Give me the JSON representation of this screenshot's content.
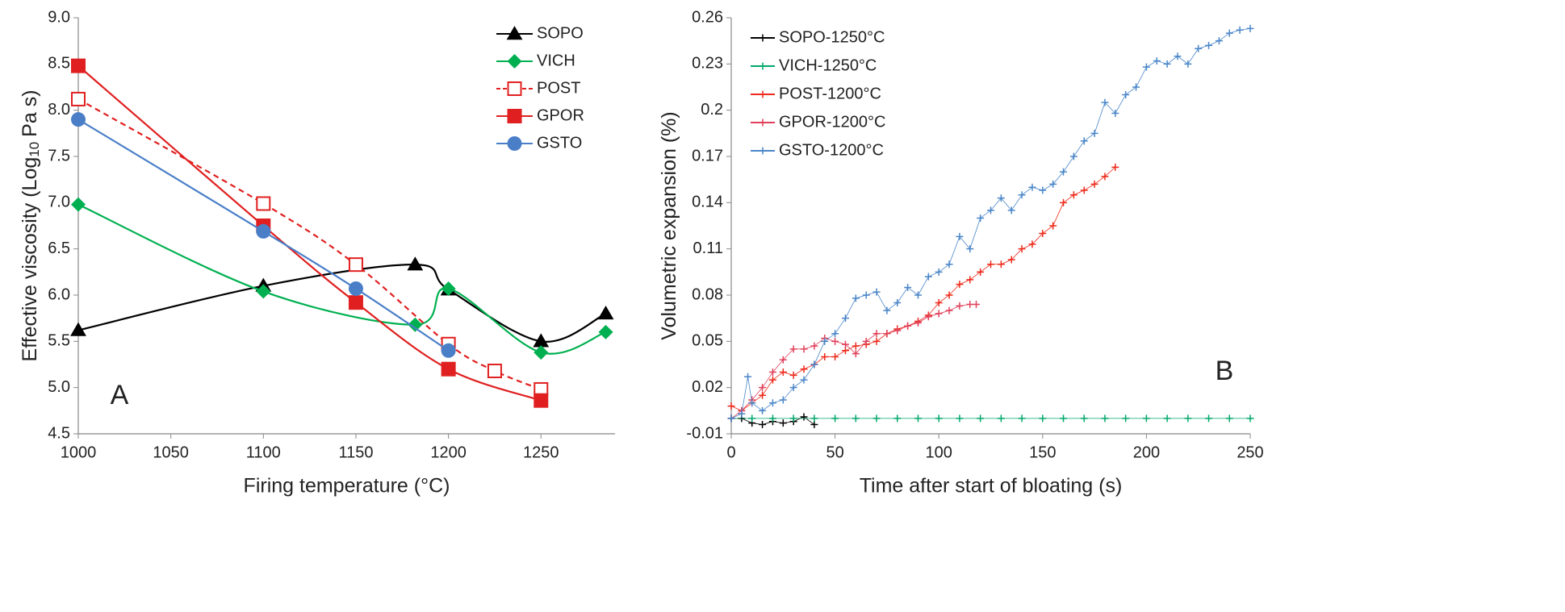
{
  "chart_data": [
    {
      "type": "line",
      "annotation": "A",
      "xlabel": "Firing temperature (°C)",
      "ylabel": "Effective viscosity (Log",
      "ylabel_sub": "10",
      "ylabel_end": "Pa s)",
      "xlim": [
        1000,
        1290
      ],
      "xticks": [
        1000,
        1050,
        1100,
        1150,
        1200,
        1250
      ],
      "ylim": [
        4.5,
        9.0
      ],
      "yticks": [
        {
          "value": 4.5,
          "label": "4.5"
        },
        {
          "value": 5.0,
          "label": "5.0"
        },
        {
          "value": 5.5,
          "label": "5.5"
        },
        {
          "value": 6.0,
          "label": "6.0"
        },
        {
          "value": 6.5,
          "label": "6.5"
        },
        {
          "value": 7.0,
          "label": "7.0"
        },
        {
          "value": 7.5,
          "label": "7.5"
        },
        {
          "value": 8.0,
          "label": "8.0"
        },
        {
          "value": 8.5,
          "label": "8.5"
        },
        {
          "value": 9.0,
          "label": "9.0"
        }
      ],
      "legend": "upper right",
      "smooth": true,
      "series": [
        {
          "name": "SOPO",
          "color": "#000000",
          "marker": "triangle",
          "x": [
            1000,
            1100,
            1182,
            1200,
            1250,
            1285
          ],
          "values": [
            5.62,
            6.1,
            6.33,
            6.06,
            5.5,
            5.8
          ]
        },
        {
          "name": "VICH",
          "color": "#00b050",
          "marker": "diamond",
          "x": [
            1000,
            1100,
            1182,
            1200,
            1250,
            1285
          ],
          "values": [
            6.98,
            6.04,
            5.68,
            6.07,
            5.38,
            5.6
          ]
        },
        {
          "name": "POST",
          "color": "#e02020",
          "marker": "square-open",
          "dashed": true,
          "x": [
            1000,
            1100,
            1150,
            1200,
            1225,
            1250
          ],
          "values": [
            8.12,
            6.99,
            6.33,
            5.47,
            5.18,
            4.98
          ]
        },
        {
          "name": "GPOR",
          "color": "#e02020",
          "marker": "square",
          "x": [
            1000,
            1100,
            1150,
            1200,
            1250
          ],
          "values": [
            8.48,
            6.75,
            5.92,
            5.2,
            4.86
          ]
        },
        {
          "name": "GSTO",
          "color": "#4a7fc8",
          "marker": "circle",
          "x": [
            1000,
            1100,
            1150,
            1200
          ],
          "values": [
            7.9,
            6.69,
            6.07,
            5.4
          ]
        }
      ]
    },
    {
      "type": "line",
      "annotation": "B",
      "xlabel": "Time after start of bloating (s)",
      "ylabel": "Volumetric  expansion (%)",
      "xlim": [
        0,
        250
      ],
      "xticks": [
        0,
        50,
        100,
        150,
        200,
        250
      ],
      "ylim": [
        -0.01,
        0.26
      ],
      "yticks": [
        -0.01,
        0.02,
        0.05,
        0.08,
        0.11,
        0.14,
        0.17,
        0.2,
        0.23,
        0.26
      ],
      "legend": "upper left",
      "smooth": false,
      "series": [
        {
          "name": "SOPO-1250°C",
          "color": "#000000",
          "marker": "plus",
          "x": [
            0,
            5,
            10,
            15,
            20,
            25,
            30,
            35,
            40
          ],
          "values": [
            0,
            0,
            -0.003,
            -0.004,
            -0.002,
            -0.003,
            -0.002,
            0.001,
            -0.004
          ]
        },
        {
          "name": "VICH-1250°C",
          "color": "#00a86b",
          "marker": "plus",
          "x": [
            0,
            10,
            20,
            30,
            40,
            50,
            60,
            70,
            80,
            90,
            100,
            110,
            120,
            130,
            140,
            150,
            160,
            170,
            180,
            190,
            200,
            210,
            220,
            230,
            240,
            250
          ],
          "values": [
            0,
            0,
            0,
            0,
            0,
            0,
            0,
            0,
            0,
            0,
            0,
            0,
            0,
            0,
            0,
            0,
            0,
            0,
            0,
            0,
            0,
            0,
            0,
            0,
            0,
            0
          ]
        },
        {
          "name": "POST-1200°C",
          "color": "#ee2a1a",
          "marker": "plus",
          "x": [
            0,
            5,
            10,
            15,
            20,
            25,
            30,
            35,
            40,
            45,
            50,
            55,
            60,
            65,
            70,
            75,
            80,
            85,
            90,
            95,
            100,
            105,
            110,
            115,
            120,
            125,
            130,
            135,
            140,
            145,
            150,
            155,
            160,
            165,
            170,
            175,
            180,
            185
          ],
          "values": [
            0.008,
            0.005,
            0.01,
            0.015,
            0.025,
            0.03,
            0.028,
            0.032,
            0.035,
            0.04,
            0.04,
            0.044,
            0.047,
            0.048,
            0.05,
            0.055,
            0.058,
            0.06,
            0.063,
            0.067,
            0.075,
            0.08,
            0.087,
            0.09,
            0.095,
            0.1,
            0.1,
            0.103,
            0.11,
            0.113,
            0.12,
            0.125,
            0.14,
            0.145,
            0.148,
            0.152,
            0.157,
            0.163
          ]
        },
        {
          "name": "GPOR-1200°C",
          "color": "#e0405a",
          "marker": "plus",
          "x": [
            0,
            5,
            10,
            15,
            20,
            25,
            30,
            35,
            40,
            45,
            50,
            55,
            60,
            65,
            70,
            75,
            80,
            85,
            90,
            95,
            100,
            105,
            110,
            115,
            118
          ],
          "values": [
            0,
            0.005,
            0.012,
            0.02,
            0.03,
            0.038,
            0.045,
            0.045,
            0.047,
            0.052,
            0.05,
            0.048,
            0.042,
            0.05,
            0.055,
            0.055,
            0.057,
            0.06,
            0.062,
            0.066,
            0.068,
            0.07,
            0.073,
            0.074,
            0.074
          ]
        },
        {
          "name": "GSTO-1200°C",
          "color": "#4a86c8",
          "marker": "plus",
          "x": [
            0,
            5,
            8,
            10,
            15,
            20,
            25,
            30,
            35,
            40,
            45,
            50,
            55,
            60,
            65,
            70,
            75,
            80,
            85,
            90,
            95,
            100,
            105,
            110,
            115,
            120,
            125,
            130,
            135,
            140,
            145,
            150,
            155,
            160,
            165,
            170,
            175,
            180,
            185,
            190,
            195,
            200,
            205,
            210,
            215,
            220,
            225,
            230,
            235,
            240,
            245,
            250
          ],
          "values": [
            0,
            0.003,
            0.027,
            0.01,
            0.005,
            0.01,
            0.012,
            0.02,
            0.025,
            0.035,
            0.05,
            0.055,
            0.065,
            0.078,
            0.08,
            0.082,
            0.07,
            0.075,
            0.085,
            0.08,
            0.092,
            0.095,
            0.1,
            0.118,
            0.11,
            0.13,
            0.135,
            0.143,
            0.135,
            0.145,
            0.15,
            0.148,
            0.152,
            0.16,
            0.17,
            0.18,
            0.185,
            0.205,
            0.198,
            0.21,
            0.215,
            0.228,
            0.232,
            0.23,
            0.235,
            0.23,
            0.24,
            0.242,
            0.245,
            0.25,
            0.252,
            0.253
          ]
        }
      ]
    }
  ]
}
